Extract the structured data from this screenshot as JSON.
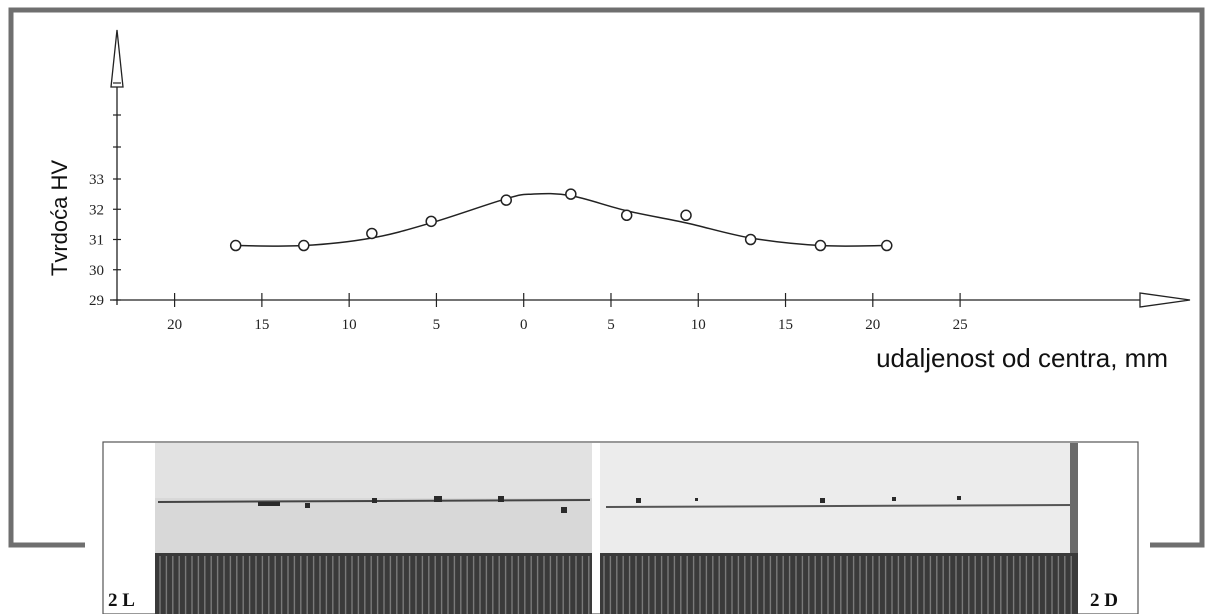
{
  "chart_data": {
    "type": "line",
    "ylabel": "Tvrdoća HV",
    "xlabel": "udaljenost od centra, mm",
    "x_ticks": [
      {
        "label": "20",
        "value": -20
      },
      {
        "label": "15",
        "value": -15
      },
      {
        "label": "10",
        "value": -10
      },
      {
        "label": "5",
        "value": -5
      },
      {
        "label": "0",
        "value": 0
      },
      {
        "label": "5",
        "value": 5
      },
      {
        "label": "10",
        "value": 10
      },
      {
        "label": "15",
        "value": 15
      },
      {
        "label": "20",
        "value": 20
      },
      {
        "label": "25",
        "value": 25
      }
    ],
    "y_ticks": [
      29,
      30,
      31,
      32,
      33
    ],
    "xlim": [
      -23.3,
      32.5
    ],
    "ylim": [
      29,
      33
    ],
    "points": {
      "x": [
        -16.5,
        -12.6,
        -8.7,
        -5.3,
        -1.0,
        2.7,
        5.9,
        9.3,
        13.0,
        17.0,
        20.8
      ],
      "y": [
        30.8,
        30.8,
        31.2,
        31.6,
        32.3,
        32.5,
        31.8,
        31.8,
        31.0,
        30.8,
        30.8
      ]
    },
    "fit_curve": {
      "x": [
        -16.5,
        -12.6,
        -8.7,
        -5.3,
        -1.0,
        0.5,
        2.7,
        5.9,
        9.3,
        13.0,
        17.0,
        20.8
      ],
      "y": [
        30.8,
        30.8,
        31.05,
        31.55,
        32.35,
        32.5,
        32.45,
        31.95,
        31.55,
        31.05,
        30.8,
        30.8
      ]
    },
    "grid": false
  },
  "photos": {
    "left_label": "2 L",
    "right_label": "2 D"
  }
}
